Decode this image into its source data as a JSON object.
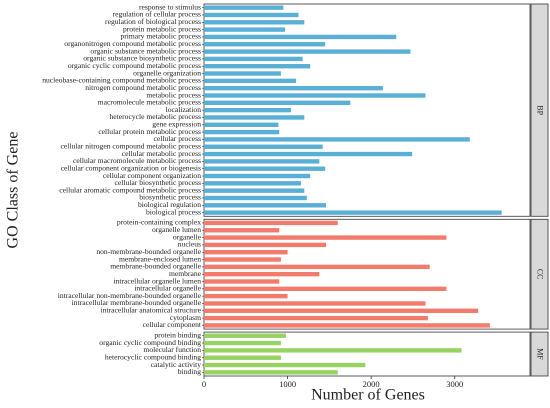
{
  "chart_data": {
    "type": "bar",
    "orientation": "horizontal",
    "xlabel": "Number of Genes",
    "ylabel": "GO Class of Gene",
    "xlim": [
      0,
      3900
    ],
    "xticks": [
      0,
      1000,
      2000,
      3000
    ],
    "panels": [
      {
        "label": "BP",
        "color": "#5aafd6",
        "categories": [
          "response to stimulus",
          "regulation of cellular process",
          "regulation of biological process",
          "protein metabolic process",
          "primary metabolic process",
          "organonitrogen compound metabolic process",
          "organic substance metabolic process",
          "organic substance biosynthetic process",
          "organic cyclic compound metabolic process",
          "organelle organization",
          "nucleobase-containing compound metabolic process",
          "nitrogen compound metabolic process",
          "metabolic process",
          "macromolecule metabolic process",
          "localization",
          "heterocycle metabolic process",
          "gene expression",
          "cellular protein metabolic process",
          "cellular process",
          "cellular nitrogen compound metabolic process",
          "cellular metabolic process",
          "cellular macromolecule metabolic process",
          "cellular component organization or biogenesis",
          "cellular component organization",
          "cellular biosynthetic process",
          "cellular aromatic compound metabolic process",
          "biosynthetic process",
          "biological regulation",
          "biological process"
        ],
        "values": [
          950,
          1130,
          1200,
          970,
          2300,
          1450,
          2470,
          1180,
          1270,
          920,
          1100,
          2140,
          2650,
          1750,
          1040,
          1200,
          890,
          900,
          3180,
          1420,
          2490,
          1380,
          1450,
          1270,
          1160,
          1200,
          1230,
          1460,
          3560
        ]
      },
      {
        "label": "CC",
        "color": "#f27b6c",
        "categories": [
          "protein-containing complex",
          "organelle lumen",
          "organelle",
          "nucleus",
          "non-membrane-bounded organelle",
          "membrane-enclosed lumen",
          "membrane-bounded organelle",
          "membrane",
          "intracellular organelle lumen",
          "intracellular organelle",
          "intracellular non-membrane-bounded organelle",
          "intracellular membrane-bounded organelle",
          "intracellular anatomical structure",
          "cytoplasm",
          "cellular component"
        ],
        "values": [
          1600,
          900,
          2900,
          1460,
          1000,
          920,
          2700,
          1380,
          900,
          2900,
          1000,
          2650,
          3280,
          2680,
          3420
        ]
      },
      {
        "label": "MF",
        "color": "#98d262",
        "categories": [
          "protein binding",
          "organic cyclic compound binding",
          "molecular function",
          "heterocyclic compound binding",
          "catalytic activity",
          "binding"
        ],
        "values": [
          980,
          920,
          3080,
          920,
          1930,
          1600
        ]
      }
    ]
  }
}
